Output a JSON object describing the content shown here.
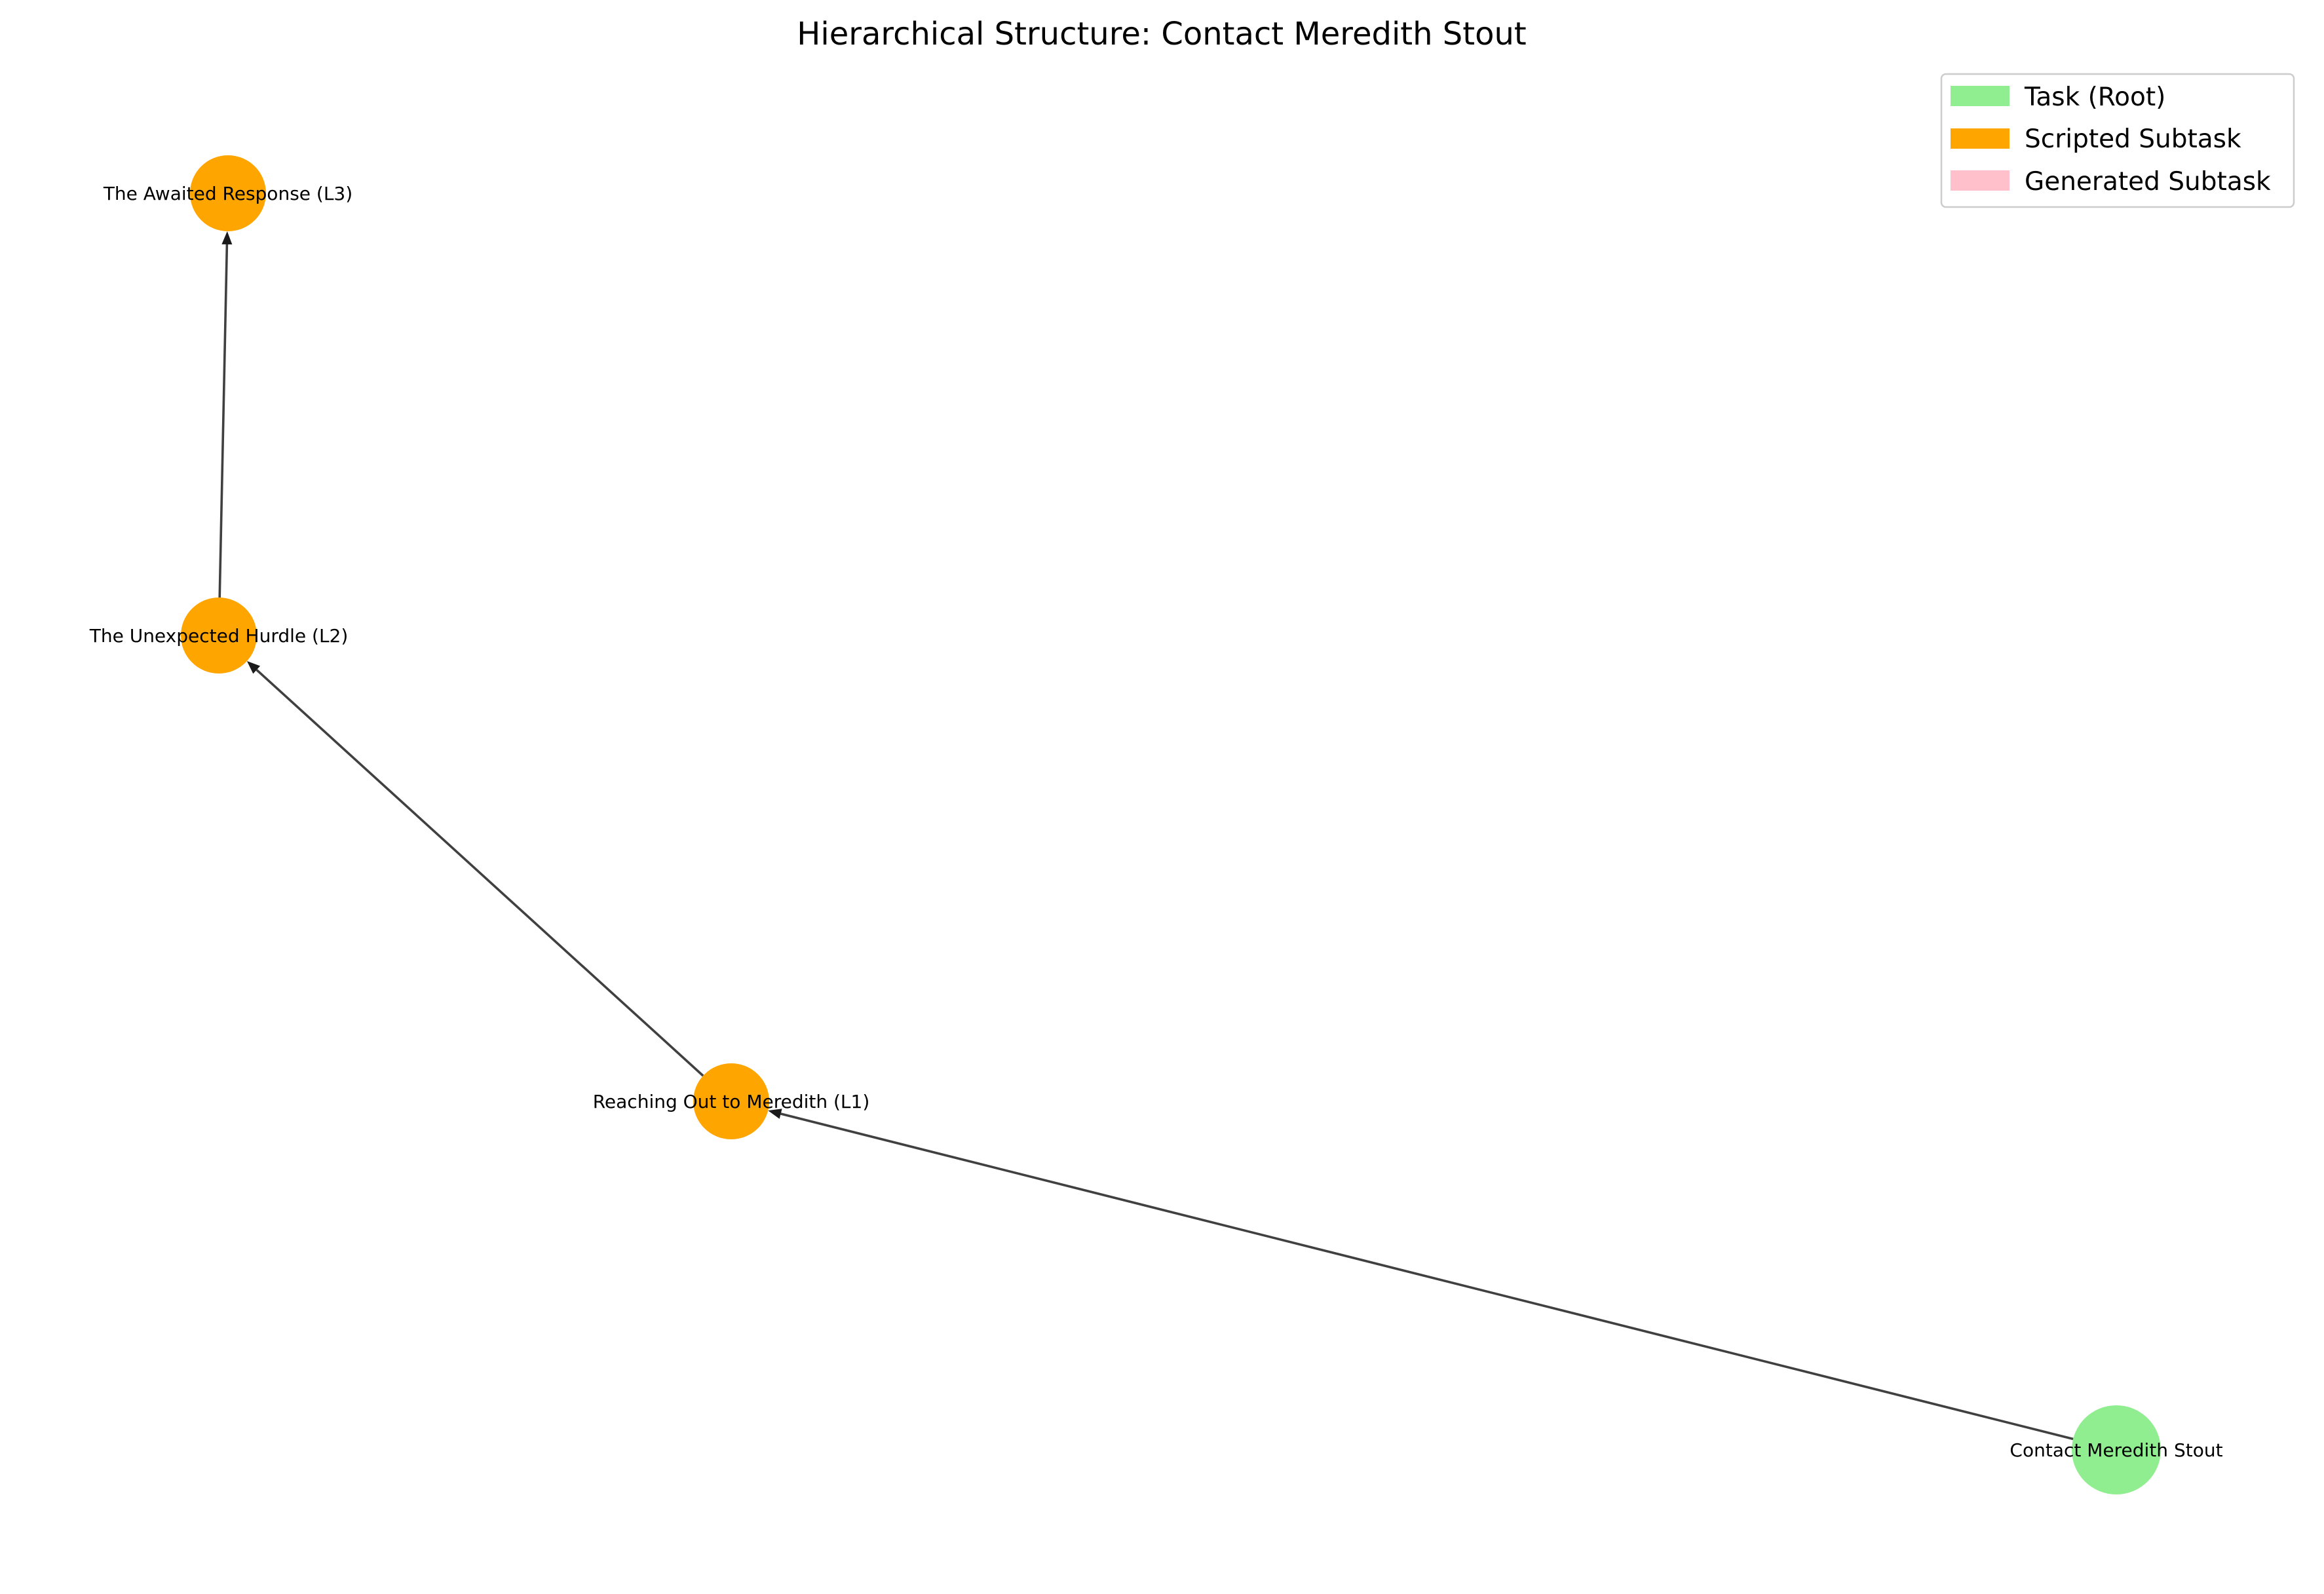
{
  "title": "Hierarchical Structure: Contact Meredith Stout",
  "legend": {
    "items": [
      {
        "label": "Task (Root)",
        "color": "#90ee90"
      },
      {
        "label": "Scripted Subtask",
        "color": "#ffa500"
      },
      {
        "label": "Generated Subtask",
        "color": "#ffc0cb"
      }
    ]
  },
  "nodes": [
    {
      "id": "root",
      "label": "Contact Meredith Stout",
      "type": "Task (Root)",
      "color": "#90ee90"
    },
    {
      "id": "l1",
      "label": "Reaching Out to Meredith (L1)",
      "type": "Scripted Subtask",
      "color": "#ffa500"
    },
    {
      "id": "l2",
      "label": "The Unexpected Hurdle (L2)",
      "type": "Scripted Subtask",
      "color": "#ffa500"
    },
    {
      "id": "l3",
      "label": "The Awaited Response (L3)",
      "type": "Scripted Subtask",
      "color": "#ffa500"
    }
  ],
  "edges": [
    {
      "from": "root",
      "to": "l1"
    },
    {
      "from": "l1",
      "to": "l2"
    },
    {
      "from": "l2",
      "to": "l3"
    }
  ]
}
